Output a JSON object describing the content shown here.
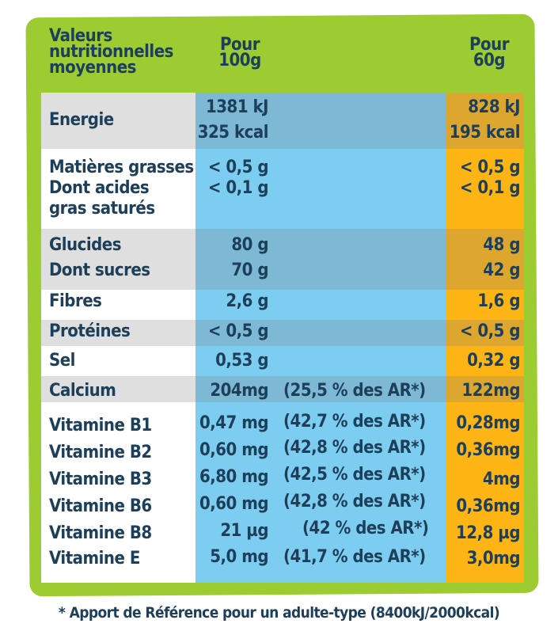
{
  "header": {
    "col_label": "Valeurs nutritionnelles moyennes",
    "col_label_lines": [
      "Valeurs",
      "nutritionnelles",
      "moyennes"
    ],
    "col_100g": [
      "Pour",
      "100g"
    ],
    "col_60g": [
      "Pour",
      "60g"
    ]
  },
  "rows": [
    {
      "label": "Energie",
      "v100": "1381 kJ",
      "v60": "828 kJ"
    },
    {
      "label": "",
      "v100": "325 kcal",
      "v60": "195 kcal"
    },
    {
      "label": "Matières grasses",
      "v100": "< 0,5 g",
      "v60": "< 0,5 g"
    },
    {
      "label": "Dont acides",
      "v100": "< 0,1 g",
      "v60": "< 0,1 g"
    },
    {
      "label": "gras saturés",
      "v100": "",
      "v60": ""
    },
    {
      "label": "Glucides",
      "v100": "80 g",
      "v60": "48 g"
    },
    {
      "label": "Dont sucres",
      "v100": "70 g",
      "v60": "42 g"
    },
    {
      "label": "Fibres",
      "v100": "2,6 g",
      "v60": "1,6 g"
    },
    {
      "label": "Protéines",
      "v100": "< 0,5 g",
      "v60": "< 0,5 g"
    },
    {
      "label": "Sel",
      "v100": "0,53 g",
      "v60": "0,32 g"
    },
    {
      "label": "Calcium",
      "v100": "204mg",
      "pct": "(25,5 % des AR*)",
      "v60": "122mg"
    },
    {
      "label": "Vitamine B1",
      "v100": "0,47 mg",
      "pct": "(42,7 % des AR*)",
      "v60": "0,28mg"
    },
    {
      "label": "Vitamine B2",
      "v100": "0,60 mg",
      "pct": "(42,8 % des AR*)",
      "v60": "0,36mg"
    },
    {
      "label": "Vitamine B3",
      "v100": "6,80 mg",
      "pct": "(42,5 % des AR*)",
      "v60": "4mg"
    },
    {
      "label": "Vitamine B6",
      "v100": "0,60 mg",
      "pct": "(42,8 % des AR*)",
      "v60": "0,36mg"
    },
    {
      "label": "Vitamine B8",
      "v100": "21 µg",
      "pct": "(42 % des AR*)",
      "v60": "12,8 µg"
    },
    {
      "label": "Vitamine E",
      "v100": "5,0 mg",
      "pct": "(41,7 % des AR*)",
      "v60": "3,0mg"
    }
  ],
  "footnote": "* Apport de Référence pour un adulte-type (8400kJ/2000kcal)",
  "colors": {
    "green": "#9ccc32",
    "blue": "#7dcdf0",
    "orange": "#fdb515",
    "text": "#1d3f59"
  }
}
